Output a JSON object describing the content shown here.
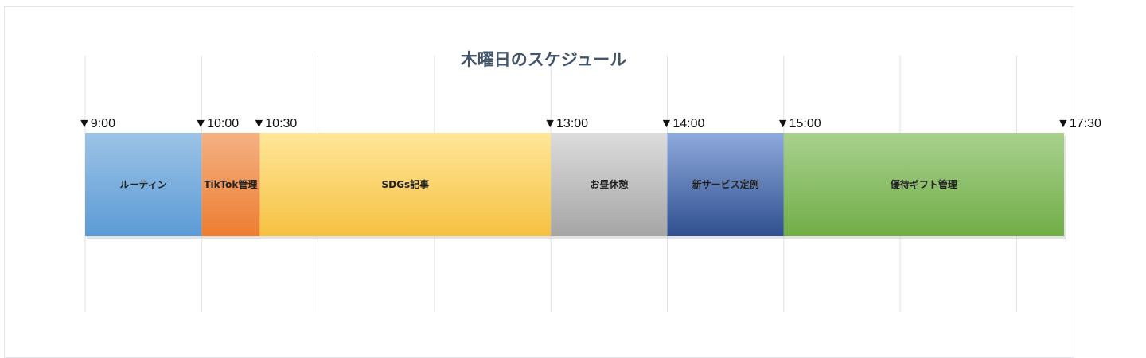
{
  "chart_data": {
    "type": "bar",
    "orientation": "horizontal-stacked-timeline",
    "title": "木曜日のスケジュール",
    "xlabel": "",
    "ylabel": "",
    "grid": true,
    "legend": "none",
    "tick_labels": [
      "▼9:00",
      "▼10:00",
      "▼10:30",
      "▼13:00",
      "▼14:00",
      "▼15:00",
      "▼17:30"
    ],
    "segments": [
      {
        "label": "ルーティン",
        "start": 9.0,
        "end": 10.0,
        "color_top": "#9dc3e6",
        "color_bottom": "#5b9bd5"
      },
      {
        "label": "TikTok管理",
        "start": 10.0,
        "end": 10.5,
        "color_top": "#f4b183",
        "color_bottom": "#ed7d31"
      },
      {
        "label": "SDGs記事",
        "start": 10.5,
        "end": 13.0,
        "color_top": "#ffe699",
        "color_bottom": "#f6c142"
      },
      {
        "label": "お昼休憩",
        "start": 13.0,
        "end": 14.0,
        "color_top": "#dcdcdc",
        "color_bottom": "#a5a5a5"
      },
      {
        "label": "新サービス定例",
        "start": 14.0,
        "end": 15.0,
        "color_top": "#8faadc",
        "color_bottom": "#2f4f8f"
      },
      {
        "label": "優待ギフト管理",
        "start": 15.0,
        "end": 17.5,
        "color_top": "#a9d18e",
        "color_bottom": "#70ad47"
      }
    ],
    "xlim": [
      9,
      17.5
    ]
  }
}
